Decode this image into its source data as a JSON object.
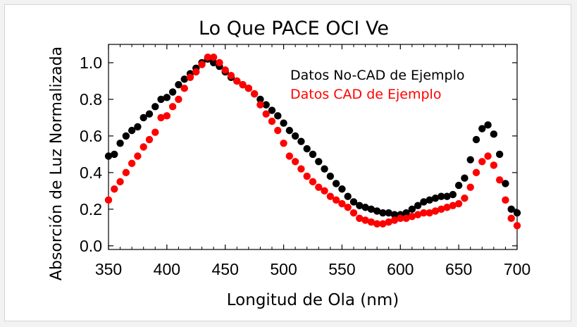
{
  "chart_data": {
    "type": "scatter",
    "title": "Lo Que PACE OCI Ve",
    "xlabel": "Longitud de Ola (nm)",
    "ylabel": "Absorción de Luz Normalizada",
    "xlim": [
      350,
      700
    ],
    "ylim": [
      -0.02,
      1.1
    ],
    "xticks": [
      350,
      400,
      450,
      500,
      550,
      600,
      650,
      700
    ],
    "xtick_labels": [
      "350",
      "400",
      "450",
      "500",
      "550",
      "600",
      "650",
      "700"
    ],
    "yticks": [
      0.0,
      0.2,
      0.4,
      0.6,
      0.8,
      1.0
    ],
    "ytick_labels": [
      "0.0",
      "0.2",
      "0.4",
      "0.6",
      "0.8",
      "1.0"
    ],
    "legend_position": "top-right",
    "series": [
      {
        "name": "Datos No-CAD de Ejemplo",
        "color": "#000000",
        "points": [
          [
            350,
            0.49
          ],
          [
            355,
            0.5
          ],
          [
            360,
            0.56
          ],
          [
            365,
            0.6
          ],
          [
            370,
            0.63
          ],
          [
            375,
            0.65
          ],
          [
            380,
            0.7
          ],
          [
            385,
            0.72
          ],
          [
            390,
            0.76
          ],
          [
            395,
            0.8
          ],
          [
            400,
            0.81
          ],
          [
            405,
            0.84
          ],
          [
            410,
            0.88
          ],
          [
            415,
            0.91
          ],
          [
            420,
            0.94
          ],
          [
            425,
            0.97
          ],
          [
            430,
            1.0
          ],
          [
            435,
            1.02
          ],
          [
            440,
            1.0
          ],
          [
            445,
            0.98
          ],
          [
            450,
            0.95
          ],
          [
            455,
            0.92
          ],
          [
            460,
            0.9
          ],
          [
            465,
            0.88
          ],
          [
            470,
            0.86
          ],
          [
            475,
            0.83
          ],
          [
            480,
            0.8
          ],
          [
            485,
            0.77
          ],
          [
            490,
            0.74
          ],
          [
            495,
            0.71
          ],
          [
            500,
            0.67
          ],
          [
            505,
            0.63
          ],
          [
            510,
            0.6
          ],
          [
            515,
            0.57
          ],
          [
            520,
            0.53
          ],
          [
            525,
            0.5
          ],
          [
            530,
            0.46
          ],
          [
            535,
            0.42
          ],
          [
            540,
            0.38
          ],
          [
            545,
            0.34
          ],
          [
            550,
            0.31
          ],
          [
            555,
            0.27
          ],
          [
            560,
            0.24
          ],
          [
            565,
            0.22
          ],
          [
            570,
            0.21
          ],
          [
            575,
            0.2
          ],
          [
            580,
            0.19
          ],
          [
            585,
            0.18
          ],
          [
            590,
            0.18
          ],
          [
            595,
            0.17
          ],
          [
            600,
            0.17
          ],
          [
            605,
            0.18
          ],
          [
            610,
            0.2
          ],
          [
            615,
            0.22
          ],
          [
            620,
            0.24
          ],
          [
            625,
            0.25
          ],
          [
            630,
            0.26
          ],
          [
            635,
            0.27
          ],
          [
            640,
            0.27
          ],
          [
            645,
            0.28
          ],
          [
            650,
            0.33
          ],
          [
            655,
            0.37
          ],
          [
            660,
            0.47
          ],
          [
            665,
            0.58
          ],
          [
            670,
            0.64
          ],
          [
            675,
            0.66
          ],
          [
            680,
            0.61
          ],
          [
            685,
            0.5
          ],
          [
            690,
            0.34
          ],
          [
            695,
            0.2
          ],
          [
            700,
            0.18
          ]
        ]
      },
      {
        "name": "Datos CAD de Ejemplo",
        "color": "#ff0000",
        "points": [
          [
            350,
            0.25
          ],
          [
            355,
            0.31
          ],
          [
            360,
            0.35
          ],
          [
            365,
            0.4
          ],
          [
            370,
            0.45
          ],
          [
            375,
            0.49
          ],
          [
            380,
            0.54
          ],
          [
            385,
            0.58
          ],
          [
            390,
            0.62
          ],
          [
            395,
            0.7
          ],
          [
            400,
            0.71
          ],
          [
            405,
            0.76
          ],
          [
            410,
            0.8
          ],
          [
            415,
            0.86
          ],
          [
            420,
            0.92
          ],
          [
            425,
            0.95
          ],
          [
            430,
            0.99
          ],
          [
            435,
            1.03
          ],
          [
            440,
            1.03
          ],
          [
            445,
            1.0
          ],
          [
            450,
            0.96
          ],
          [
            455,
            0.93
          ],
          [
            460,
            0.9
          ],
          [
            465,
            0.88
          ],
          [
            470,
            0.86
          ],
          [
            475,
            0.83
          ],
          [
            480,
            0.77
          ],
          [
            485,
            0.72
          ],
          [
            490,
            0.68
          ],
          [
            495,
            0.63
          ],
          [
            500,
            0.56
          ],
          [
            505,
            0.49
          ],
          [
            510,
            0.46
          ],
          [
            515,
            0.42
          ],
          [
            520,
            0.38
          ],
          [
            525,
            0.35
          ],
          [
            530,
            0.32
          ],
          [
            535,
            0.3
          ],
          [
            540,
            0.27
          ],
          [
            545,
            0.25
          ],
          [
            550,
            0.23
          ],
          [
            555,
            0.21
          ],
          [
            560,
            0.18
          ],
          [
            565,
            0.15
          ],
          [
            570,
            0.14
          ],
          [
            575,
            0.13
          ],
          [
            580,
            0.12
          ],
          [
            585,
            0.12
          ],
          [
            590,
            0.13
          ],
          [
            595,
            0.14
          ],
          [
            600,
            0.15
          ],
          [
            605,
            0.15
          ],
          [
            610,
            0.16
          ],
          [
            615,
            0.17
          ],
          [
            620,
            0.18
          ],
          [
            625,
            0.18
          ],
          [
            630,
            0.19
          ],
          [
            635,
            0.2
          ],
          [
            640,
            0.21
          ],
          [
            645,
            0.22
          ],
          [
            650,
            0.23
          ],
          [
            655,
            0.26
          ],
          [
            660,
            0.32
          ],
          [
            665,
            0.4
          ],
          [
            670,
            0.46
          ],
          [
            675,
            0.49
          ],
          [
            680,
            0.44
          ],
          [
            685,
            0.36
          ],
          [
            690,
            0.25
          ],
          [
            695,
            0.15
          ],
          [
            700,
            0.11
          ]
        ]
      }
    ]
  }
}
